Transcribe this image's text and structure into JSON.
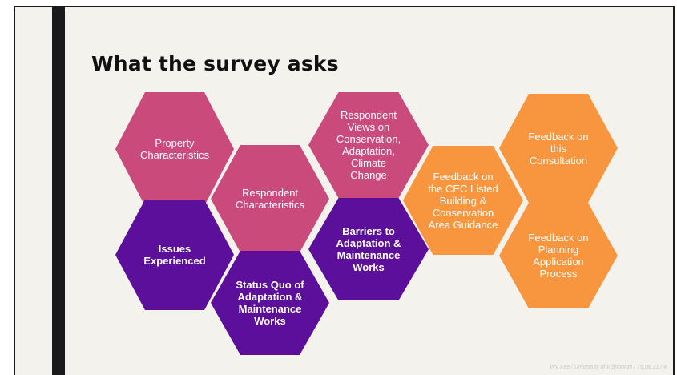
{
  "slide": {
    "title": "What the survey asks",
    "footer": "WV Lee / University of Edinburgh / 15.08.23 / 4"
  },
  "colors": {
    "pink": "#c94a7b",
    "purple": "#5b0f9b",
    "orange": "#f7963e",
    "bar": "#1a1a1a",
    "background": "#f3f2ec"
  },
  "hexagons": {
    "property": "Property\nCharacteristics",
    "respondent_chars": "Respondent\nCharacteristics",
    "views": "Respondent\nViews on\nConservation,\nAdaptation,\nClimate\nChange",
    "issues": "Issues\nExperienced",
    "status_quo": "Status Quo of\nAdaptation &\nMaintenance\nWorks",
    "barriers": "Barriers to\nAdaptation &\nMaintenance\nWorks",
    "guidance": "Feedback on\nthe CEC Listed\nBuilding &\nConservation\nArea Guidance",
    "consultation": "Feedback on\nthis\nConsultation",
    "planning": "Feedback on\nPlanning\nApplication\nProcess"
  }
}
